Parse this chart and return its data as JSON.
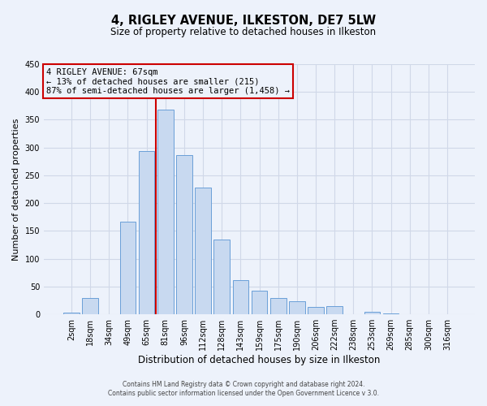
{
  "title": "4, RIGLEY AVENUE, ILKESTON, DE7 5LW",
  "subtitle": "Size of property relative to detached houses in Ilkeston",
  "xlabel": "Distribution of detached houses by size in Ilkeston",
  "ylabel": "Number of detached properties",
  "bar_labels": [
    "2sqm",
    "18sqm",
    "34sqm",
    "49sqm",
    "65sqm",
    "81sqm",
    "96sqm",
    "112sqm",
    "128sqm",
    "143sqm",
    "159sqm",
    "175sqm",
    "190sqm",
    "206sqm",
    "222sqm",
    "238sqm",
    "253sqm",
    "269sqm",
    "285sqm",
    "300sqm",
    "316sqm"
  ],
  "bar_values": [
    3,
    29,
    0,
    167,
    293,
    368,
    286,
    228,
    135,
    61,
    42,
    30,
    24,
    13,
    15,
    0,
    5,
    2,
    0,
    0,
    0
  ],
  "bar_color": "#c8d9f0",
  "bar_edge_color": "#6a9fd8",
  "grid_color": "#d0d8e8",
  "background_color": "#edf2fb",
  "vline_color": "#cc0000",
  "annotation_title": "4 RIGLEY AVENUE: 67sqm",
  "annotation_line1": "← 13% of detached houses are smaller (215)",
  "annotation_line2": "87% of semi-detached houses are larger (1,458) →",
  "annotation_box_edge_color": "#cc0000",
  "ylim": [
    0,
    450
  ],
  "yticks": [
    0,
    50,
    100,
    150,
    200,
    250,
    300,
    350,
    400,
    450
  ],
  "footer1": "Contains HM Land Registry data © Crown copyright and database right 2024.",
  "footer2": "Contains public sector information licensed under the Open Government Licence v 3.0.",
  "vline_pos": 4.5
}
